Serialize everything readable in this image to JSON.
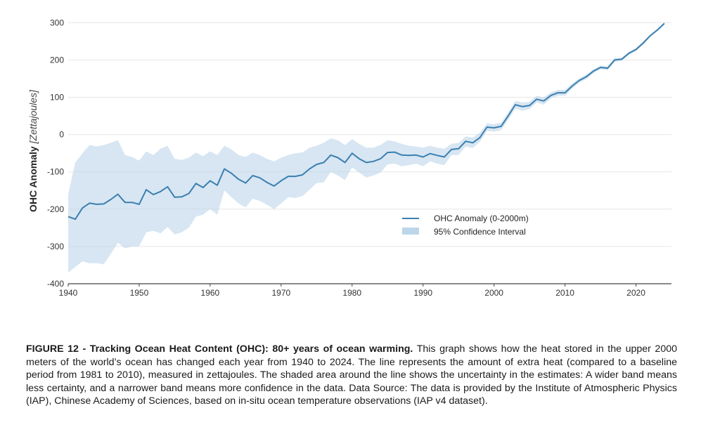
{
  "chart_data": {
    "type": "line",
    "title": "",
    "xlabel": "",
    "ylabel": "OHC Anomaly",
    "ylabel_unit": "[Zettajoules]",
    "xlim": [
      1940,
      2025
    ],
    "ylim": [
      -400,
      310
    ],
    "x_ticks": [
      1940,
      1950,
      1960,
      1970,
      1980,
      1990,
      2000,
      2010,
      2020
    ],
    "y_ticks": [
      -400,
      -300,
      -200,
      -100,
      0,
      100,
      200,
      300
    ],
    "grid": true,
    "legend_position": "center-right",
    "series": [
      {
        "name": "OHC Anomaly (0-2000m)",
        "color": "#3a7fb0",
        "x": [
          1940,
          1941,
          1942,
          1943,
          1944,
          1945,
          1946,
          1947,
          1948,
          1949,
          1950,
          1951,
          1952,
          1953,
          1954,
          1955,
          1956,
          1957,
          1958,
          1959,
          1960,
          1961,
          1962,
          1963,
          1964,
          1965,
          1966,
          1967,
          1968,
          1969,
          1970,
          1971,
          1972,
          1973,
          1974,
          1975,
          1976,
          1977,
          1978,
          1979,
          1980,
          1981,
          1982,
          1983,
          1984,
          1985,
          1986,
          1987,
          1988,
          1989,
          1990,
          1991,
          1992,
          1993,
          1994,
          1995,
          1996,
          1997,
          1998,
          1999,
          2000,
          2001,
          2002,
          2003,
          2004,
          2005,
          2006,
          2007,
          2008,
          2009,
          2010,
          2011,
          2012,
          2013,
          2014,
          2015,
          2016,
          2017,
          2018,
          2019,
          2020,
          2021,
          2022,
          2023,
          2024
        ],
        "values": [
          -220,
          -227,
          -197,
          -184,
          -187,
          -186,
          -174,
          -160,
          -182,
          -182,
          -187,
          -148,
          -161,
          -153,
          -140,
          -168,
          -167,
          -158,
          -131,
          -142,
          -124,
          -136,
          -92,
          -104,
          -120,
          -130,
          -110,
          -116,
          -128,
          -138,
          -124,
          -112,
          -112,
          -108,
          -92,
          -80,
          -75,
          -55,
          -62,
          -75,
          -50,
          -65,
          -75,
          -72,
          -65,
          -48,
          -47,
          -55,
          -56,
          -55,
          -60,
          -51,
          -56,
          -60,
          -40,
          -38,
          -18,
          -22,
          -8,
          20,
          18,
          22,
          50,
          80,
          75,
          78,
          95,
          90,
          105,
          112,
          112,
          130,
          145,
          155,
          170,
          180,
          178,
          200,
          202,
          218,
          228,
          245,
          265,
          280,
          298
        ]
      },
      {
        "name": "95% Confidence Interval",
        "color": "#bcd6ea",
        "x": [
          1940,
          1941,
          1942,
          1943,
          1944,
          1945,
          1946,
          1947,
          1948,
          1949,
          1950,
          1951,
          1952,
          1953,
          1954,
          1955,
          1956,
          1957,
          1958,
          1959,
          1960,
          1961,
          1962,
          1963,
          1964,
          1965,
          1966,
          1967,
          1968,
          1969,
          1970,
          1971,
          1972,
          1973,
          1974,
          1975,
          1976,
          1977,
          1978,
          1979,
          1980,
          1981,
          1982,
          1983,
          1984,
          1985,
          1986,
          1987,
          1988,
          1989,
          1990,
          1991,
          1992,
          1993,
          1994,
          1995,
          1996,
          1997,
          1998,
          1999,
          2000,
          2001,
          2002,
          2003,
          2004,
          2005,
          2006,
          2007,
          2008,
          2009,
          2010,
          2011,
          2012,
          2013,
          2014,
          2015,
          2016,
          2017,
          2018,
          2019,
          2020,
          2021,
          2022,
          2023,
          2024
        ],
        "upper": [
          -160,
          -75,
          -50,
          -28,
          -32,
          -28,
          -22,
          -15,
          -55,
          -60,
          -70,
          -45,
          -55,
          -38,
          -30,
          -65,
          -68,
          -62,
          -48,
          -58,
          -45,
          -55,
          -30,
          -40,
          -55,
          -60,
          -48,
          -55,
          -65,
          -72,
          -62,
          -55,
          -50,
          -48,
          -35,
          -30,
          -22,
          -10,
          -15,
          -28,
          -12,
          -25,
          -35,
          -35,
          -28,
          -15,
          -18,
          -25,
          -30,
          -32,
          -35,
          -30,
          -35,
          -38,
          -25,
          -22,
          -5,
          -8,
          5,
          30,
          28,
          32,
          60,
          90,
          86,
          88,
          104,
          100,
          113,
          120,
          120,
          137,
          151,
          161,
          175,
          185,
          183,
          205,
          206,
          222,
          232,
          249,
          268,
          283,
          301
        ],
        "lower": [
          -370,
          -355,
          -340,
          -345,
          -345,
          -348,
          -320,
          -290,
          -305,
          -300,
          -300,
          -262,
          -258,
          -265,
          -248,
          -268,
          -262,
          -250,
          -220,
          -215,
          -200,
          -215,
          -150,
          -168,
          -185,
          -195,
          -172,
          -178,
          -188,
          -200,
          -185,
          -168,
          -170,
          -165,
          -148,
          -130,
          -128,
          -100,
          -110,
          -122,
          -88,
          -102,
          -115,
          -110,
          -102,
          -80,
          -78,
          -85,
          -82,
          -78,
          -85,
          -72,
          -78,
          -82,
          -55,
          -55,
          -32,
          -36,
          -20,
          10,
          8,
          12,
          40,
          70,
          64,
          68,
          86,
          80,
          97,
          104,
          104,
          123,
          139,
          149,
          165,
          175,
          173,
          195,
          198,
          214,
          224,
          241,
          262,
          277,
          295
        ]
      }
    ]
  },
  "caption": {
    "heading": "FIGURE 12 - Tracking Ocean Heat Content (OHC): 80+ years of ocean warming.",
    "body": "This graph shows how the heat stored in the upper 2000 meters of the world’s ocean has changed each year from 1940 to 2024. The line represents the amount of extra heat (compared to a baseline period from 1981 to 2010), measured in zettajoules. The shaded area around the line shows the uncertainty in the estimates: A wider band means less certainty, and a narrower band means more confidence in the data. Data Source: The data is provided by the Institute of Atmospheric Physics (IAP), Chinese Academy of Sciences, based on in-situ ocean temperature observations (IAP v4 dataset)."
  },
  "colors": {
    "line": "#3a7fb0",
    "band": "#bcd6ea",
    "grid": "#e6e6e6",
    "axis": "#444444"
  }
}
